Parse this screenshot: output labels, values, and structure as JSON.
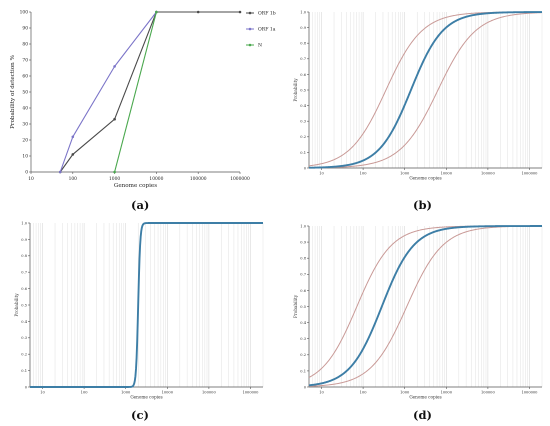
{
  "panel_labels": [
    "(a)",
    "(b)",
    "(c)",
    "(d)"
  ],
  "colors": {
    "orf1b": "#4a4a4a",
    "orf1a": "#7b74c8",
    "n": "#4aa84e",
    "fit": "#3d7ea6",
    "ci": "#c99a97",
    "grid": "#d9d9d9",
    "axis": "#555555"
  },
  "chart_data": [
    {
      "type": "line",
      "panel": "(a)",
      "xscale": "log",
      "x_ticks": [
        10,
        100,
        1000,
        10000,
        100000,
        1000000
      ],
      "x_tick_labels": [
        "10",
        "100",
        "1000",
        "10000",
        "100000",
        "1000000"
      ],
      "y_ticks": [
        0,
        10,
        20,
        30,
        40,
        50,
        60,
        70,
        80,
        90,
        100
      ],
      "y_tick_labels": [
        "0",
        "10",
        "20",
        "30",
        "40",
        "50",
        "60",
        "70",
        "80",
        "90",
        "100"
      ],
      "xlim": [
        10,
        1000000
      ],
      "ylim": [
        0,
        100
      ],
      "xlabel": "Genome copies",
      "ylabel": "Probability of detection %",
      "legend_position": "top-right",
      "series": [
        {
          "name": "ORF 1b",
          "color_key": "orf1b",
          "x": [
            50,
            100,
            1000,
            10000,
            100000,
            1000000
          ],
          "y": [
            0,
            11,
            33,
            100,
            100,
            100
          ]
        },
        {
          "name": "ORF 1a",
          "color_key": "orf1a",
          "x": [
            50,
            100,
            1000,
            10000
          ],
          "y": [
            0,
            22,
            66,
            100
          ]
        },
        {
          "name": "N",
          "color_key": "n",
          "x": [
            1000,
            10000
          ],
          "y": [
            0,
            100
          ]
        }
      ]
    },
    {
      "type": "line",
      "panel": "(b)",
      "xscale": "log",
      "x_ticks": [
        10,
        100,
        1000,
        10000,
        100000,
        1000000
      ],
      "x_tick_labels": [
        "10",
        "100",
        "1000",
        "10000",
        "100000",
        "1000000"
      ],
      "y_ticks": [
        0,
        0.1,
        0.2,
        0.3,
        0.4,
        0.5,
        0.6,
        0.7,
        0.8,
        0.9,
        1.0
      ],
      "y_tick_labels": [
        "0",
        "0.1",
        "0.2",
        "0.3",
        "0.4",
        "0.5",
        "0.6",
        "0.7",
        "0.8",
        "0.9",
        "1.0"
      ],
      "xlim": [
        5,
        2000000
      ],
      "ylim": [
        0,
        1
      ],
      "xlabel": "Genome copies",
      "ylabel": "Probability",
      "fit": {
        "mid_log10": 3.15,
        "slope": 2.6
      },
      "ci_lower": {
        "mid_log10": 2.55,
        "slope": 2.3
      },
      "ci_upper": {
        "mid_log10": 3.8,
        "slope": 2.2
      }
    },
    {
      "type": "line",
      "panel": "(c)",
      "xscale": "log",
      "x_ticks": [
        10,
        100,
        1000,
        10000,
        100000,
        1000000
      ],
      "x_tick_labels": [
        "10",
        "100",
        "1000",
        "10000",
        "100000",
        "1000000"
      ],
      "y_ticks": [
        0,
        0.1,
        0.2,
        0.3,
        0.4,
        0.5,
        0.6,
        0.7,
        0.8,
        0.9,
        1.0
      ],
      "y_tick_labels": [
        "0",
        "0.1",
        "0.2",
        "0.3",
        "0.4",
        "0.5",
        "0.6",
        "0.7",
        "0.8",
        "0.9",
        "1.0"
      ],
      "xlim": [
        5,
        2000000
      ],
      "ylim": [
        0,
        1
      ],
      "xlabel": "Genome copies",
      "ylabel": "Probability",
      "fit": {
        "mid_log10": 3.3,
        "slope": 40
      }
    },
    {
      "type": "line",
      "panel": "(d)",
      "xscale": "log",
      "x_ticks": [
        10,
        100,
        1000,
        10000,
        100000,
        1000000
      ],
      "x_tick_labels": [
        "10",
        "100",
        "1000",
        "10000",
        "100000",
        "1000000"
      ],
      "y_ticks": [
        0,
        0.1,
        0.2,
        0.3,
        0.4,
        0.5,
        0.6,
        0.7,
        0.8,
        0.9,
        1.0
      ],
      "y_tick_labels": [
        "0",
        "0.1",
        "0.2",
        "0.3",
        "0.4",
        "0.5",
        "0.6",
        "0.7",
        "0.8",
        "0.9",
        "1.0"
      ],
      "xlim": [
        5,
        2000000
      ],
      "ylim": [
        0,
        1
      ],
      "xlabel": "Genome copies",
      "ylabel": "Probability",
      "fit": {
        "mid_log10": 2.45,
        "slope": 2.6
      },
      "ci_lower": {
        "mid_log10": 1.85,
        "slope": 2.4
      },
      "ci_upper": {
        "mid_log10": 3.05,
        "slope": 2.3
      }
    }
  ]
}
